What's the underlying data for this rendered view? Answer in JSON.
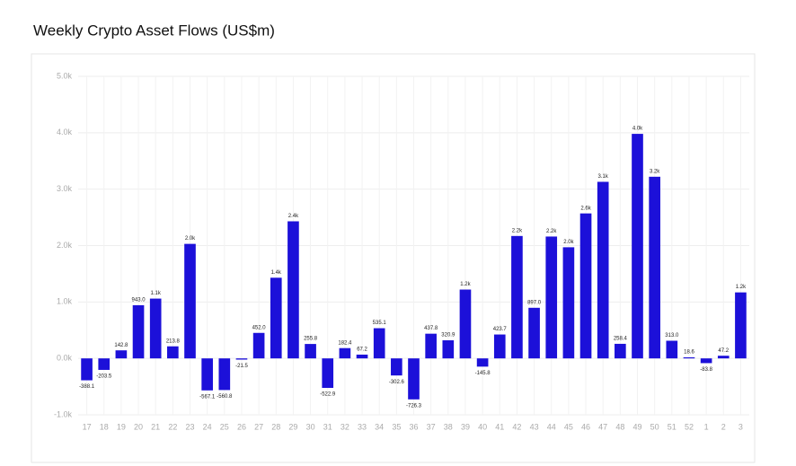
{
  "chart_data": {
    "type": "bar",
    "title": "Weekly Crypto Asset Flows (US$m)",
    "categories": [
      "17",
      "18",
      "19",
      "20",
      "21",
      "22",
      "23",
      "24",
      "25",
      "26",
      "27",
      "28",
      "29",
      "30",
      "31",
      "32",
      "33",
      "34",
      "35",
      "36",
      "37",
      "38",
      "39",
      "40",
      "41",
      "42",
      "43",
      "44",
      "45",
      "46",
      "47",
      "48",
      "49",
      "50",
      "51",
      "52",
      "1",
      "2",
      "3"
    ],
    "values": [
      -388.1,
      -203.5,
      142.8,
      943.0,
      1060,
      213.8,
      2030,
      -567.1,
      -560.8,
      -21.5,
      452.0,
      1430,
      2430,
      255.8,
      -522.9,
      182.4,
      67.2,
      535.1,
      -302.6,
      -726.3,
      437.8,
      320.9,
      1220,
      -145.8,
      423.7,
      2170,
      897.0,
      2160,
      1970,
      2570,
      3130,
      258.4,
      3980,
      3220,
      313.0,
      18.6,
      -83.8,
      47.2,
      1170
    ],
    "value_labels": [
      "-388.1",
      "-203.5",
      "142.8",
      "943.0",
      "1.1k",
      "213.8",
      "2.0k",
      "-567.1",
      "-560.8",
      "-21.5",
      "452.0",
      "1.4k",
      "2.4k",
      "255.8",
      "-522.9",
      "182.4",
      "67.2",
      "535.1",
      "-302.6",
      "-726.3",
      "437.8",
      "320.9",
      "1.2k",
      "-145.8",
      "423.7",
      "2.2k",
      "897.0",
      "2.2k",
      "2.0k",
      "2.6k",
      "3.1k",
      "258.4",
      "4.0k",
      "3.2k",
      "313.0",
      "18.6",
      "-83.8",
      "47.2",
      "1.2k"
    ],
    "color": "#1c10d9",
    "ylim": [
      -1000,
      5000
    ],
    "yticks": [
      {
        "value": -1000,
        "label": "-1.0k"
      },
      {
        "value": 0,
        "label": "0.0k"
      },
      {
        "value": 1000,
        "label": "1.0k"
      },
      {
        "value": 2000,
        "label": "2.0k"
      },
      {
        "value": 3000,
        "label": "3.0k"
      },
      {
        "value": 4000,
        "label": "4.0k"
      },
      {
        "value": 5000,
        "label": "5.0k"
      }
    ],
    "grid": true
  }
}
